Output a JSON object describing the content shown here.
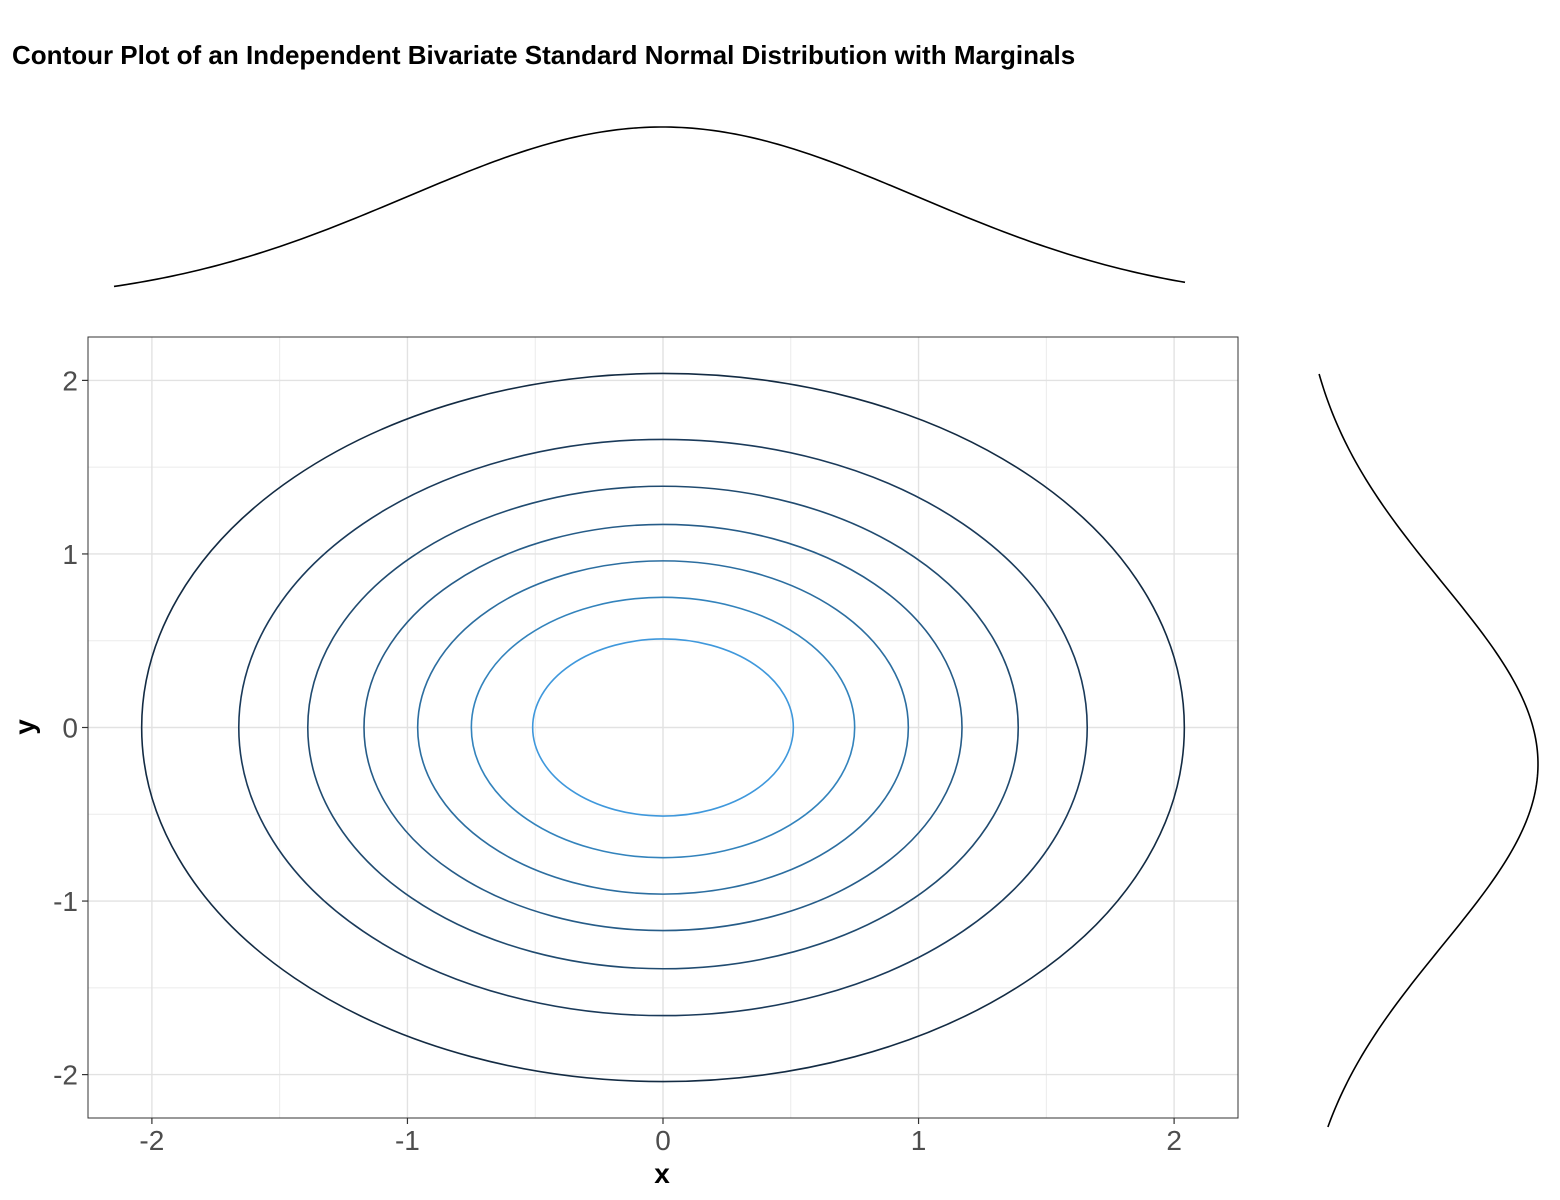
{
  "chart_data": {
    "type": "contour",
    "title": "Contour Plot of an Independent Bivariate Standard Normal Distribution with Marginals",
    "xlabel": "x",
    "ylabel": "y",
    "xlim": [
      -2.25,
      2.25
    ],
    "ylim": [
      -2.25,
      2.25
    ],
    "x_ticks": [
      -2,
      -1,
      0,
      1,
      2
    ],
    "y_ticks": [
      -2,
      -1,
      0,
      1,
      2
    ],
    "x_tick_labels": [
      "-2",
      "-1",
      "0",
      "1",
      "2"
    ],
    "y_tick_labels": [
      "-2",
      "-1",
      "0",
      "1",
      "2"
    ],
    "grid": true,
    "legend": "none",
    "contour_radii": [
      2.04,
      1.66,
      1.39,
      1.17,
      0.96,
      0.75,
      0.51
    ],
    "contour_colors": [
      "#132B43",
      "#1A3A5A",
      "#204B70",
      "#265C88",
      "#2C6EA0",
      "#3383BC",
      "#3F98DC"
    ],
    "marginal_x": {
      "distribution": "standard normal",
      "x_range": [
        -2.15,
        2.05
      ],
      "peak_at": 0
    },
    "marginal_y": {
      "distribution": "standard normal",
      "y_range": [
        -2.1,
        2.05
      ],
      "peak_at": -0.1
    }
  }
}
